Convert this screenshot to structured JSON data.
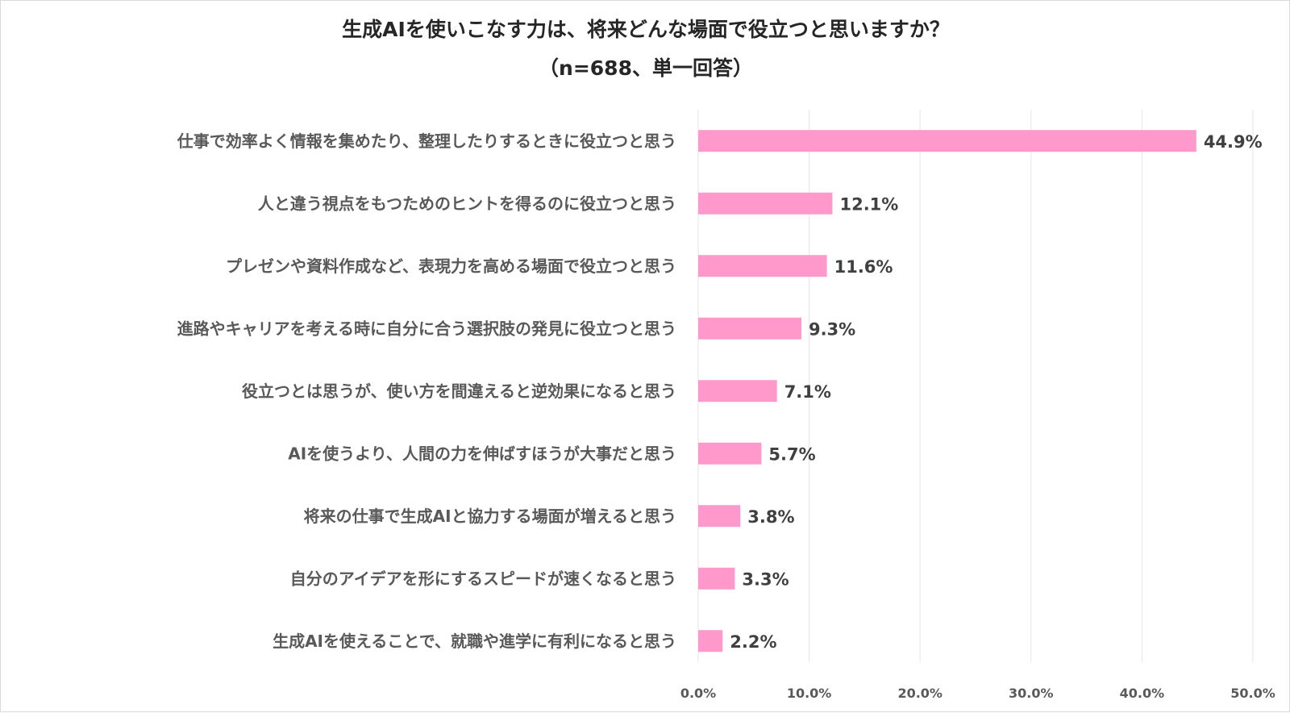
{
  "chart_data": {
    "type": "bar",
    "orientation": "horizontal",
    "title": "生成AIを使いこなす力は、将来どんな場面で役立つと思いますか？",
    "subtitle": "（n=688、単一回答）",
    "categories": [
      "仕事で効率よく情報を集めたり、整理したりするときに役立つと思う",
      "人と違う視点をもつためのヒントを得るのに役立つと思う",
      "プレゼンや資料作成など、表現力を高める場面で役立つと思う",
      "進路やキャリアを考える時に自分に合う選択肢の発見に役立つと思う",
      "役立つとは思うが、使い方を間違えると逆効果になると思う",
      "AIを使うより、人間の力を伸ばすほうが大事だと思う",
      "将来の仕事で生成AIと協力する場面が増えると思う",
      "自分のアイデアを形にするスピードが速くなると思う",
      "生成AIを使えることで、就職や進学に有利になると思う"
    ],
    "values": [
      44.9,
      12.1,
      11.6,
      9.3,
      7.1,
      5.7,
      3.8,
      3.3,
      2.2
    ],
    "value_labels": [
      "44.9%",
      "12.1%",
      "11.6%",
      "9.3%",
      "7.1%",
      "5.7%",
      "3.8%",
      "3.3%",
      "2.2%"
    ],
    "xlim": [
      0,
      50
    ],
    "x_ticks": [
      0,
      10,
      20,
      30,
      40,
      50
    ],
    "x_tick_labels": [
      "0.0%",
      "10.0%",
      "20.0%",
      "30.0%",
      "40.0%",
      "50.0%"
    ],
    "grid": true,
    "legend": "none",
    "bar_color": "#ff99cc",
    "grid_color": "#e6e6e6"
  }
}
